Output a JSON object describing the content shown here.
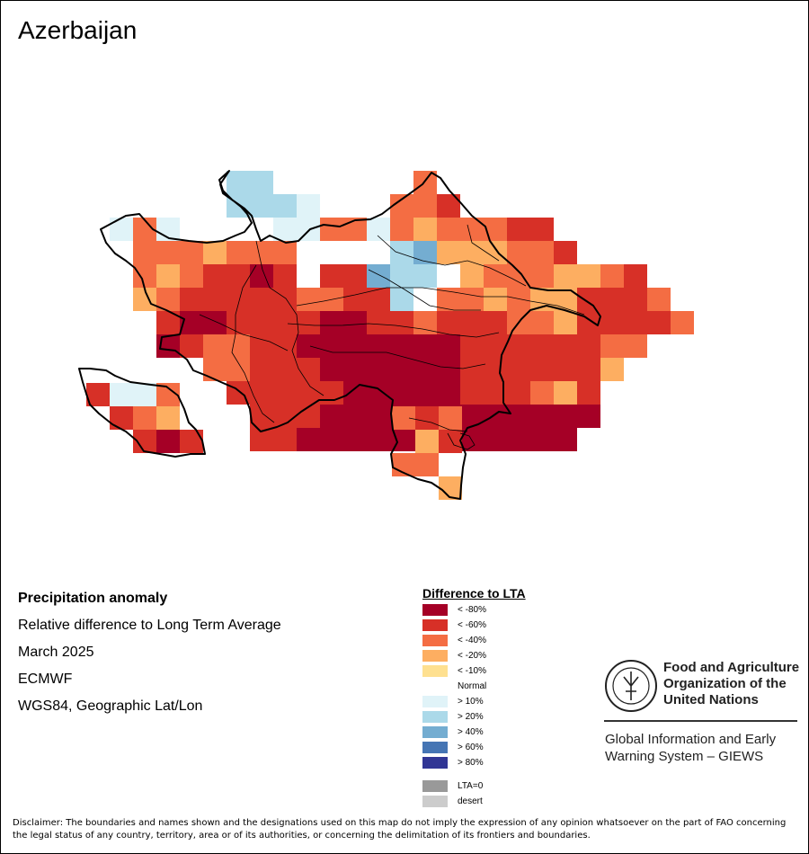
{
  "map": {
    "title": "Azerbaijan",
    "info": {
      "heading": "Precipitation anomaly",
      "subtitle": "Relative difference to Long Term Average",
      "period": "March 2025",
      "model": "ECMWF",
      "projection": "WGS84, Geographic Lat/Lon"
    },
    "legend": {
      "title": "Difference to LTA",
      "items": [
        {
          "label": "< -80%",
          "color": "#a50026"
        },
        {
          "label": "< -60%",
          "color": "#d73027"
        },
        {
          "label": "< -40%",
          "color": "#f46d43"
        },
        {
          "label": "< -20%",
          "color": "#fdae61"
        },
        {
          "label": "< -10%",
          "color": "#fee090"
        },
        {
          "label": "Normal",
          "color": "#ffffff"
        },
        {
          "label": "> 10%",
          "color": "#e0f3f8"
        },
        {
          "label": "> 20%",
          "color": "#abd9e9"
        },
        {
          "label": "> 40%",
          "color": "#74add1"
        },
        {
          "label": "> 60%",
          "color": "#4575b4"
        },
        {
          "label": "> 80%",
          "color": "#313695"
        }
      ],
      "extra": [
        {
          "label": "LTA=0",
          "color": "#999999"
        },
        {
          "label": "desert",
          "color": "#cccccc"
        }
      ]
    },
    "logo": {
      "org_name_line1": "Food and Agriculture",
      "org_name_line2": "Organization of the",
      "org_name_line3": "United Nations",
      "emblem_text": "FAO",
      "motto": "FIAT PANIS",
      "system_line1": "Global Information and Early",
      "system_line2": "Warning System – GIEWS"
    },
    "disclaimer": "Disclaimer: The boundaries and names shown and the designations used on this map do not imply the expression of any opinion whatsoever on the part of FAO concerning the legal status of any country, territory, area or of its authorities, or concerning the delimitation of its frontiers and boundaries."
  }
}
